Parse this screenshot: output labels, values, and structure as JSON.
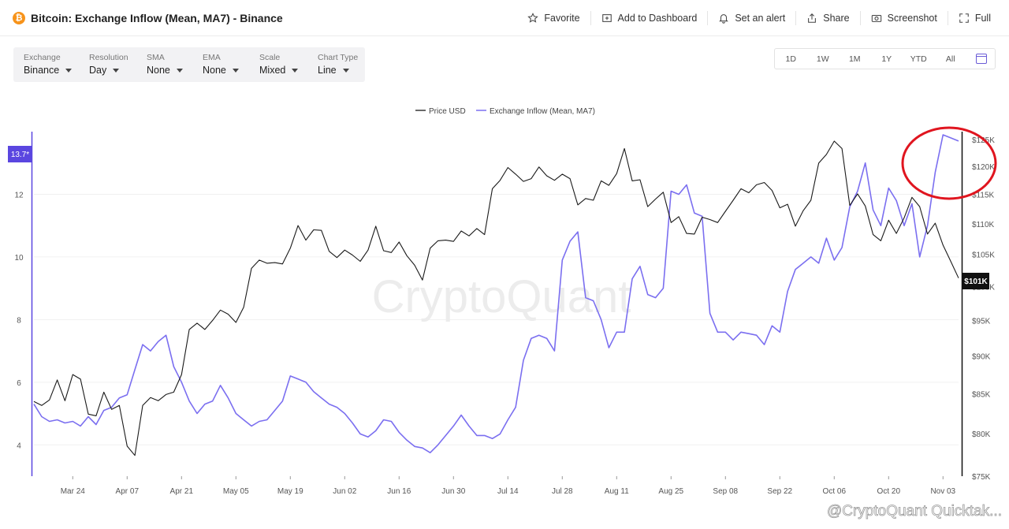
{
  "header": {
    "title": "Bitcoin: Exchange Inflow (Mean, MA7) - Binance",
    "coin_icon": "bitcoin-icon",
    "actions": [
      {
        "label": "Favorite",
        "icon": "star-icon"
      },
      {
        "label": "Add to Dashboard",
        "icon": "add-dashboard-icon"
      },
      {
        "label": "Set an alert",
        "icon": "bell-icon"
      },
      {
        "label": "Share",
        "icon": "share-icon"
      },
      {
        "label": "Screenshot",
        "icon": "camera-icon"
      },
      {
        "label": "Full",
        "icon": "fullscreen-icon"
      }
    ]
  },
  "controls": [
    {
      "label": "Exchange",
      "value": "Binance"
    },
    {
      "label": "Resolution",
      "value": "Day"
    },
    {
      "label": "SMA",
      "value": "None"
    },
    {
      "label": "EMA",
      "value": "None"
    },
    {
      "label": "Scale",
      "value": "Mixed"
    },
    {
      "label": "Chart Type",
      "value": "Line"
    }
  ],
  "ranges": [
    "1D",
    "1W",
    "1M",
    "1Y",
    "YTD",
    "All"
  ],
  "watermark": "CryptoQuant",
  "footer_watermark": "@CryptoQuant Quicktak...",
  "colors": {
    "price": "#1a1a1a",
    "inflow": "#7b6ff0",
    "accent": "#5a46e0",
    "annotation": "#e0151f"
  },
  "chart_data": {
    "type": "line",
    "legend": [
      "Price USD",
      "Exchange Inflow (Mean, MA7)"
    ],
    "legend_position": "top-center",
    "x_ticks": [
      "Mar 24",
      "Apr 07",
      "Apr 21",
      "May 05",
      "May 19",
      "Jun 02",
      "Jun 16",
      "Jun 30",
      "Jul 14",
      "Jul 28",
      "Aug 11",
      "Aug 25",
      "Sep 08",
      "Sep 22",
      "Oct 06",
      "Oct 20",
      "Nov 03"
    ],
    "left_axis": {
      "ticks": [
        "4",
        "6",
        "8",
        "10",
        "12"
      ],
      "range": [
        3.0,
        14.0
      ],
      "current_label": "13.7*"
    },
    "right_axis": {
      "ticks": [
        "$75K",
        "$80K",
        "$85K",
        "$90K",
        "$95K",
        "$100K",
        "$105K",
        "$110K",
        "$115K",
        "$120K",
        "$125K"
      ],
      "scale": "log",
      "range": [
        75000,
        126500
      ],
      "current_label": "$101K"
    },
    "x_range": [
      "2025-03-14",
      "2025-11-07"
    ],
    "series": [
      {
        "name": "Exchange Inflow (Mean, MA7)",
        "axis": "left",
        "points": [
          [
            "2025-03-14",
            5.3
          ],
          [
            "2025-03-16",
            4.9
          ],
          [
            "2025-03-18",
            4.75
          ],
          [
            "2025-03-20",
            4.8
          ],
          [
            "2025-03-22",
            4.7
          ],
          [
            "2025-03-24",
            4.75
          ],
          [
            "2025-03-26",
            4.6
          ],
          [
            "2025-03-28",
            4.9
          ],
          [
            "2025-03-30",
            4.65
          ],
          [
            "2025-04-01",
            5.1
          ],
          [
            "2025-04-03",
            5.2
          ],
          [
            "2025-04-05",
            5.5
          ],
          [
            "2025-04-07",
            5.6
          ],
          [
            "2025-04-09",
            6.4
          ],
          [
            "2025-04-11",
            7.2
          ],
          [
            "2025-04-13",
            7.0
          ],
          [
            "2025-04-15",
            7.3
          ],
          [
            "2025-04-17",
            7.5
          ],
          [
            "2025-04-19",
            6.5
          ],
          [
            "2025-04-21",
            6.0
          ],
          [
            "2025-04-23",
            5.4
          ],
          [
            "2025-04-25",
            5.0
          ],
          [
            "2025-04-27",
            5.3
          ],
          [
            "2025-04-29",
            5.4
          ],
          [
            "2025-05-01",
            5.9
          ],
          [
            "2025-05-03",
            5.5
          ],
          [
            "2025-05-05",
            5.0
          ],
          [
            "2025-05-07",
            4.8
          ],
          [
            "2025-05-09",
            4.6
          ],
          [
            "2025-05-11",
            4.75
          ],
          [
            "2025-05-13",
            4.8
          ],
          [
            "2025-05-15",
            5.1
          ],
          [
            "2025-05-17",
            5.4
          ],
          [
            "2025-05-19",
            6.2
          ],
          [
            "2025-05-21",
            6.1
          ],
          [
            "2025-05-23",
            6.0
          ],
          [
            "2025-05-25",
            5.7
          ],
          [
            "2025-05-27",
            5.5
          ],
          [
            "2025-05-29",
            5.3
          ],
          [
            "2025-05-31",
            5.2
          ],
          [
            "2025-06-02",
            5.0
          ],
          [
            "2025-06-04",
            4.7
          ],
          [
            "2025-06-06",
            4.35
          ],
          [
            "2025-06-08",
            4.25
          ],
          [
            "2025-06-10",
            4.45
          ],
          [
            "2025-06-12",
            4.8
          ],
          [
            "2025-06-14",
            4.75
          ],
          [
            "2025-06-16",
            4.4
          ],
          [
            "2025-06-18",
            4.15
          ],
          [
            "2025-06-20",
            3.95
          ],
          [
            "2025-06-22",
            3.9
          ],
          [
            "2025-06-24",
            3.75
          ],
          [
            "2025-06-26",
            4.0
          ],
          [
            "2025-06-28",
            4.3
          ],
          [
            "2025-06-30",
            4.6
          ],
          [
            "2025-07-02",
            4.95
          ],
          [
            "2025-07-04",
            4.6
          ],
          [
            "2025-07-06",
            4.3
          ],
          [
            "2025-07-08",
            4.3
          ],
          [
            "2025-07-10",
            4.2
          ],
          [
            "2025-07-12",
            4.35
          ],
          [
            "2025-07-14",
            4.8
          ],
          [
            "2025-07-16",
            5.2
          ],
          [
            "2025-07-18",
            6.7
          ],
          [
            "2025-07-20",
            7.4
          ],
          [
            "2025-07-22",
            7.5
          ],
          [
            "2025-07-24",
            7.4
          ],
          [
            "2025-07-26",
            7.0
          ],
          [
            "2025-07-28",
            9.9
          ],
          [
            "2025-07-30",
            10.5
          ],
          [
            "2025-08-01",
            10.8
          ],
          [
            "2025-08-03",
            8.7
          ],
          [
            "2025-08-05",
            8.6
          ],
          [
            "2025-08-07",
            8.0
          ],
          [
            "2025-08-09",
            7.1
          ],
          [
            "2025-08-11",
            7.6
          ],
          [
            "2025-08-13",
            7.6
          ],
          [
            "2025-08-15",
            9.3
          ],
          [
            "2025-08-17",
            9.7
          ],
          [
            "2025-08-19",
            8.8
          ],
          [
            "2025-08-21",
            8.7
          ],
          [
            "2025-08-23",
            9.0
          ],
          [
            "2025-08-25",
            12.1
          ],
          [
            "2025-08-27",
            12.0
          ],
          [
            "2025-08-29",
            12.3
          ],
          [
            "2025-08-31",
            11.4
          ],
          [
            "2025-09-02",
            11.3
          ],
          [
            "2025-09-04",
            8.2
          ],
          [
            "2025-09-06",
            7.6
          ],
          [
            "2025-09-08",
            7.6
          ],
          [
            "2025-09-10",
            7.35
          ],
          [
            "2025-09-12",
            7.6
          ],
          [
            "2025-09-14",
            7.55
          ],
          [
            "2025-09-16",
            7.5
          ],
          [
            "2025-09-18",
            7.2
          ],
          [
            "2025-09-20",
            7.8
          ],
          [
            "2025-09-22",
            7.6
          ],
          [
            "2025-09-24",
            8.9
          ],
          [
            "2025-09-26",
            9.6
          ],
          [
            "2025-09-28",
            9.8
          ],
          [
            "2025-09-30",
            10.0
          ],
          [
            "2025-10-02",
            9.8
          ],
          [
            "2025-10-04",
            10.6
          ],
          [
            "2025-10-06",
            9.9
          ],
          [
            "2025-10-08",
            10.3
          ],
          [
            "2025-10-10",
            11.6
          ],
          [
            "2025-10-12",
            12.1
          ],
          [
            "2025-10-14",
            13.0
          ],
          [
            "2025-10-16",
            11.5
          ],
          [
            "2025-10-18",
            11.0
          ],
          [
            "2025-10-20",
            12.2
          ],
          [
            "2025-10-22",
            11.8
          ],
          [
            "2025-10-24",
            11.0
          ],
          [
            "2025-10-26",
            11.7
          ],
          [
            "2025-10-28",
            10.0
          ],
          [
            "2025-10-30",
            11.0
          ],
          [
            "2025-11-01",
            12.7
          ],
          [
            "2025-11-03",
            13.9
          ],
          [
            "2025-11-05",
            13.8
          ],
          [
            "2025-11-07",
            13.7
          ]
        ]
      },
      {
        "name": "Price USD",
        "axis": "right",
        "points": [
          [
            "2025-03-14",
            84000
          ],
          [
            "2025-03-16",
            83500
          ],
          [
            "2025-03-18",
            84200
          ],
          [
            "2025-03-20",
            86800
          ],
          [
            "2025-03-22",
            84100
          ],
          [
            "2025-03-24",
            87500
          ],
          [
            "2025-03-26",
            86900
          ],
          [
            "2025-03-28",
            82400
          ],
          [
            "2025-03-30",
            82200
          ],
          [
            "2025-04-01",
            85200
          ],
          [
            "2025-04-03",
            83000
          ],
          [
            "2025-04-05",
            83500
          ],
          [
            "2025-04-07",
            78500
          ],
          [
            "2025-04-09",
            77400
          ],
          [
            "2025-04-11",
            83500
          ],
          [
            "2025-04-13",
            84500
          ],
          [
            "2025-04-15",
            84100
          ],
          [
            "2025-04-17",
            84900
          ],
          [
            "2025-04-19",
            85200
          ],
          [
            "2025-04-21",
            87500
          ],
          [
            "2025-04-23",
            93700
          ],
          [
            "2025-04-25",
            94600
          ],
          [
            "2025-04-27",
            93700
          ],
          [
            "2025-04-29",
            95000
          ],
          [
            "2025-05-01",
            96500
          ],
          [
            "2025-05-03",
            95900
          ],
          [
            "2025-05-05",
            94700
          ],
          [
            "2025-05-07",
            96900
          ],
          [
            "2025-05-09",
            102800
          ],
          [
            "2025-05-11",
            104100
          ],
          [
            "2025-05-13",
            103600
          ],
          [
            "2025-05-15",
            103700
          ],
          [
            "2025-05-17",
            103500
          ],
          [
            "2025-05-19",
            106000
          ],
          [
            "2025-05-21",
            109700
          ],
          [
            "2025-05-23",
            107300
          ],
          [
            "2025-05-25",
            109000
          ],
          [
            "2025-05-27",
            108900
          ],
          [
            "2025-05-29",
            105500
          ],
          [
            "2025-05-31",
            104500
          ],
          [
            "2025-06-02",
            105700
          ],
          [
            "2025-06-04",
            104900
          ],
          [
            "2025-06-06",
            103900
          ],
          [
            "2025-06-08",
            105700
          ],
          [
            "2025-06-10",
            109600
          ],
          [
            "2025-06-12",
            105600
          ],
          [
            "2025-06-14",
            105300
          ],
          [
            "2025-06-16",
            107000
          ],
          [
            "2025-06-18",
            104800
          ],
          [
            "2025-06-20",
            103300
          ],
          [
            "2025-06-22",
            101000
          ],
          [
            "2025-06-24",
            106000
          ],
          [
            "2025-06-26",
            107200
          ],
          [
            "2025-06-28",
            107300
          ],
          [
            "2025-06-30",
            107100
          ],
          [
            "2025-07-02",
            108800
          ],
          [
            "2025-07-04",
            108000
          ],
          [
            "2025-07-06",
            109200
          ],
          [
            "2025-07-08",
            108200
          ],
          [
            "2025-07-10",
            116000
          ],
          [
            "2025-07-12",
            117500
          ],
          [
            "2025-07-14",
            119800
          ],
          [
            "2025-07-16",
            118600
          ],
          [
            "2025-07-18",
            117300
          ],
          [
            "2025-07-20",
            117800
          ],
          [
            "2025-07-22",
            119900
          ],
          [
            "2025-07-24",
            118300
          ],
          [
            "2025-07-26",
            117500
          ],
          [
            "2025-07-28",
            118600
          ],
          [
            "2025-07-30",
            117800
          ],
          [
            "2025-08-01",
            113200
          ],
          [
            "2025-08-03",
            114300
          ],
          [
            "2025-08-05",
            114000
          ],
          [
            "2025-08-07",
            117400
          ],
          [
            "2025-08-09",
            116600
          ],
          [
            "2025-08-11",
            118700
          ],
          [
            "2025-08-13",
            123300
          ],
          [
            "2025-08-15",
            117400
          ],
          [
            "2025-08-17",
            117600
          ],
          [
            "2025-08-19",
            112900
          ],
          [
            "2025-08-21",
            114200
          ],
          [
            "2025-08-23",
            115400
          ],
          [
            "2025-08-25",
            110200
          ],
          [
            "2025-08-27",
            111200
          ],
          [
            "2025-08-29",
            108400
          ],
          [
            "2025-08-31",
            108300
          ],
          [
            "2025-09-02",
            111100
          ],
          [
            "2025-09-04",
            110700
          ],
          [
            "2025-09-06",
            110200
          ],
          [
            "2025-09-08",
            112100
          ],
          [
            "2025-09-10",
            114000
          ],
          [
            "2025-09-12",
            116000
          ],
          [
            "2025-09-14",
            115300
          ],
          [
            "2025-09-16",
            116700
          ],
          [
            "2025-09-18",
            117100
          ],
          [
            "2025-09-20",
            115700
          ],
          [
            "2025-09-22",
            112700
          ],
          [
            "2025-09-24",
            113300
          ],
          [
            "2025-09-26",
            109600
          ],
          [
            "2025-09-28",
            112200
          ],
          [
            "2025-09-30",
            114000
          ],
          [
            "2025-10-02",
            120600
          ],
          [
            "2025-10-04",
            122200
          ],
          [
            "2025-10-06",
            124700
          ],
          [
            "2025-10-08",
            123300
          ],
          [
            "2025-10-10",
            113100
          ],
          [
            "2025-10-12",
            115100
          ],
          [
            "2025-10-14",
            113000
          ],
          [
            "2025-10-16",
            108200
          ],
          [
            "2025-10-18",
            107200
          ],
          [
            "2025-10-20",
            110600
          ],
          [
            "2025-10-22",
            108400
          ],
          [
            "2025-10-24",
            111000
          ],
          [
            "2025-10-26",
            114500
          ],
          [
            "2025-10-28",
            112900
          ],
          [
            "2025-10-30",
            108300
          ],
          [
            "2025-11-01",
            110100
          ],
          [
            "2025-11-03",
            106500
          ],
          [
            "2025-11-05",
            103900
          ],
          [
            "2025-11-07",
            101300
          ]
        ]
      }
    ],
    "annotation": {
      "type": "circle",
      "color": "#e0151f",
      "around": "Exchange Inflow (Mean, MA7) latest high"
    }
  }
}
